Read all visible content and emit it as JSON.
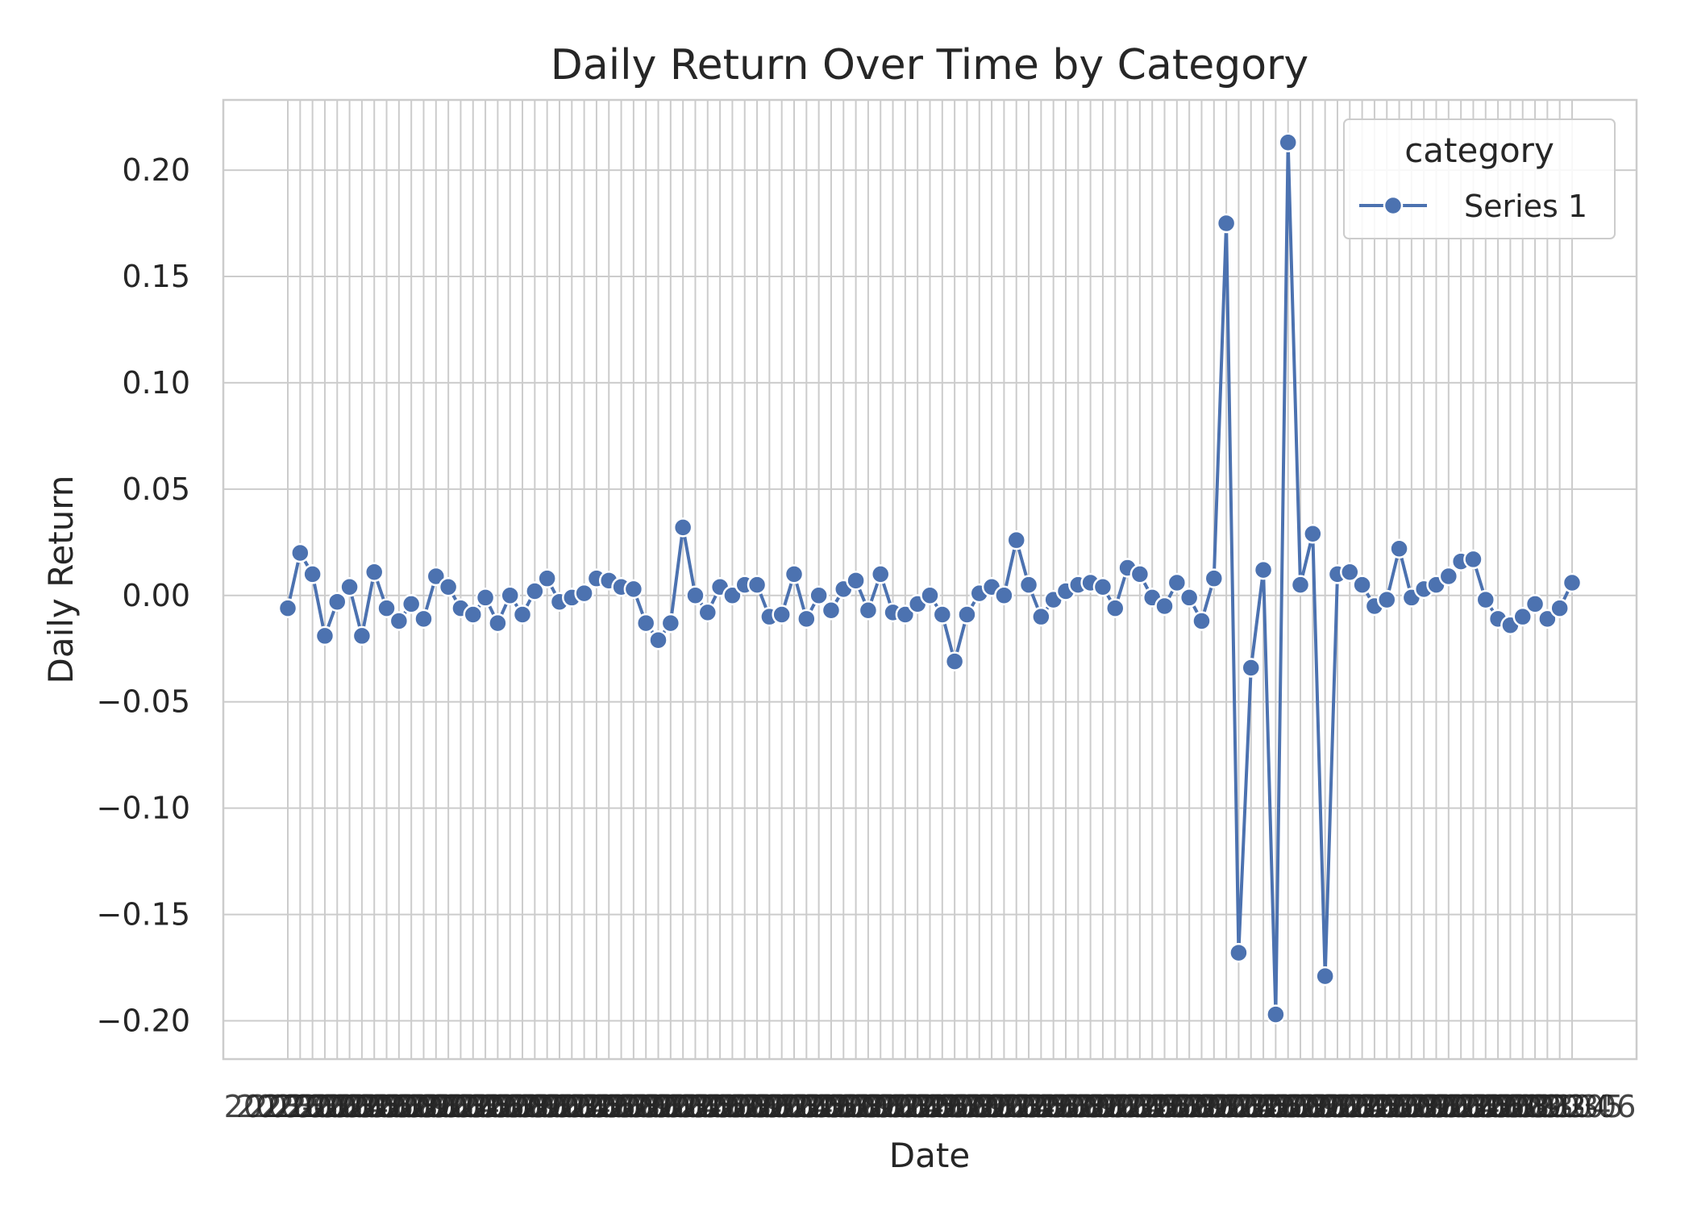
{
  "chart_data": {
    "type": "line",
    "title": "Daily Return Over Time by Category",
    "xlabel": "Date",
    "ylabel": "Daily Return",
    "ylim": [
      -0.218,
      0.233
    ],
    "yticks": [
      -0.2,
      -0.15,
      -0.1,
      -0.05,
      0.0,
      0.05,
      0.1,
      0.15,
      0.2
    ],
    "ytick_labels": [
      "−0.20",
      "−0.15",
      "−0.10",
      "−0.05",
      "0.00",
      "0.05",
      "0.10",
      "0.15",
      "0.20"
    ],
    "x_tick_label_note": "x tick labels are dense overlapping date strings (illegible)",
    "grid": true,
    "legend": {
      "title": "category",
      "placement": "top-right"
    },
    "colors": {
      "series": "#4c72b0",
      "grid": "#cccccc",
      "text": "#262626",
      "marker_edge": "#ffffff"
    },
    "series": [
      {
        "name": "Series 1",
        "values": [
          -0.006,
          0.02,
          0.01,
          -0.019,
          -0.003,
          0.004,
          -0.019,
          0.011,
          -0.006,
          -0.012,
          -0.004,
          -0.011,
          0.009,
          0.004,
          -0.006,
          -0.009,
          -0.001,
          -0.013,
          0.0,
          -0.009,
          0.002,
          0.008,
          -0.003,
          -0.001,
          0.001,
          0.008,
          0.007,
          0.004,
          0.003,
          -0.013,
          -0.021,
          -0.013,
          0.032,
          0.0,
          -0.008,
          0.004,
          0.0,
          0.005,
          0.005,
          -0.01,
          -0.009,
          0.01,
          -0.011,
          0.0,
          -0.007,
          0.003,
          0.007,
          -0.007,
          0.01,
          -0.008,
          -0.009,
          -0.004,
          0.0,
          -0.009,
          -0.031,
          -0.009,
          0.001,
          0.004,
          0.0,
          0.026,
          0.005,
          -0.01,
          -0.002,
          0.002,
          0.005,
          0.006,
          0.004,
          -0.006,
          0.013,
          0.01,
          -0.001,
          -0.005,
          0.006,
          -0.001,
          -0.012,
          0.008,
          0.175,
          -0.168,
          -0.034,
          0.012,
          -0.197,
          0.213,
          0.005,
          0.029,
          -0.179,
          0.01,
          0.011,
          0.005,
          -0.005,
          -0.002,
          0.022,
          -0.001,
          0.003,
          0.005,
          0.009,
          0.016,
          0.017,
          -0.002,
          -0.011,
          -0.014,
          -0.01,
          -0.004,
          -0.011,
          -0.006,
          0.006
        ]
      }
    ]
  }
}
